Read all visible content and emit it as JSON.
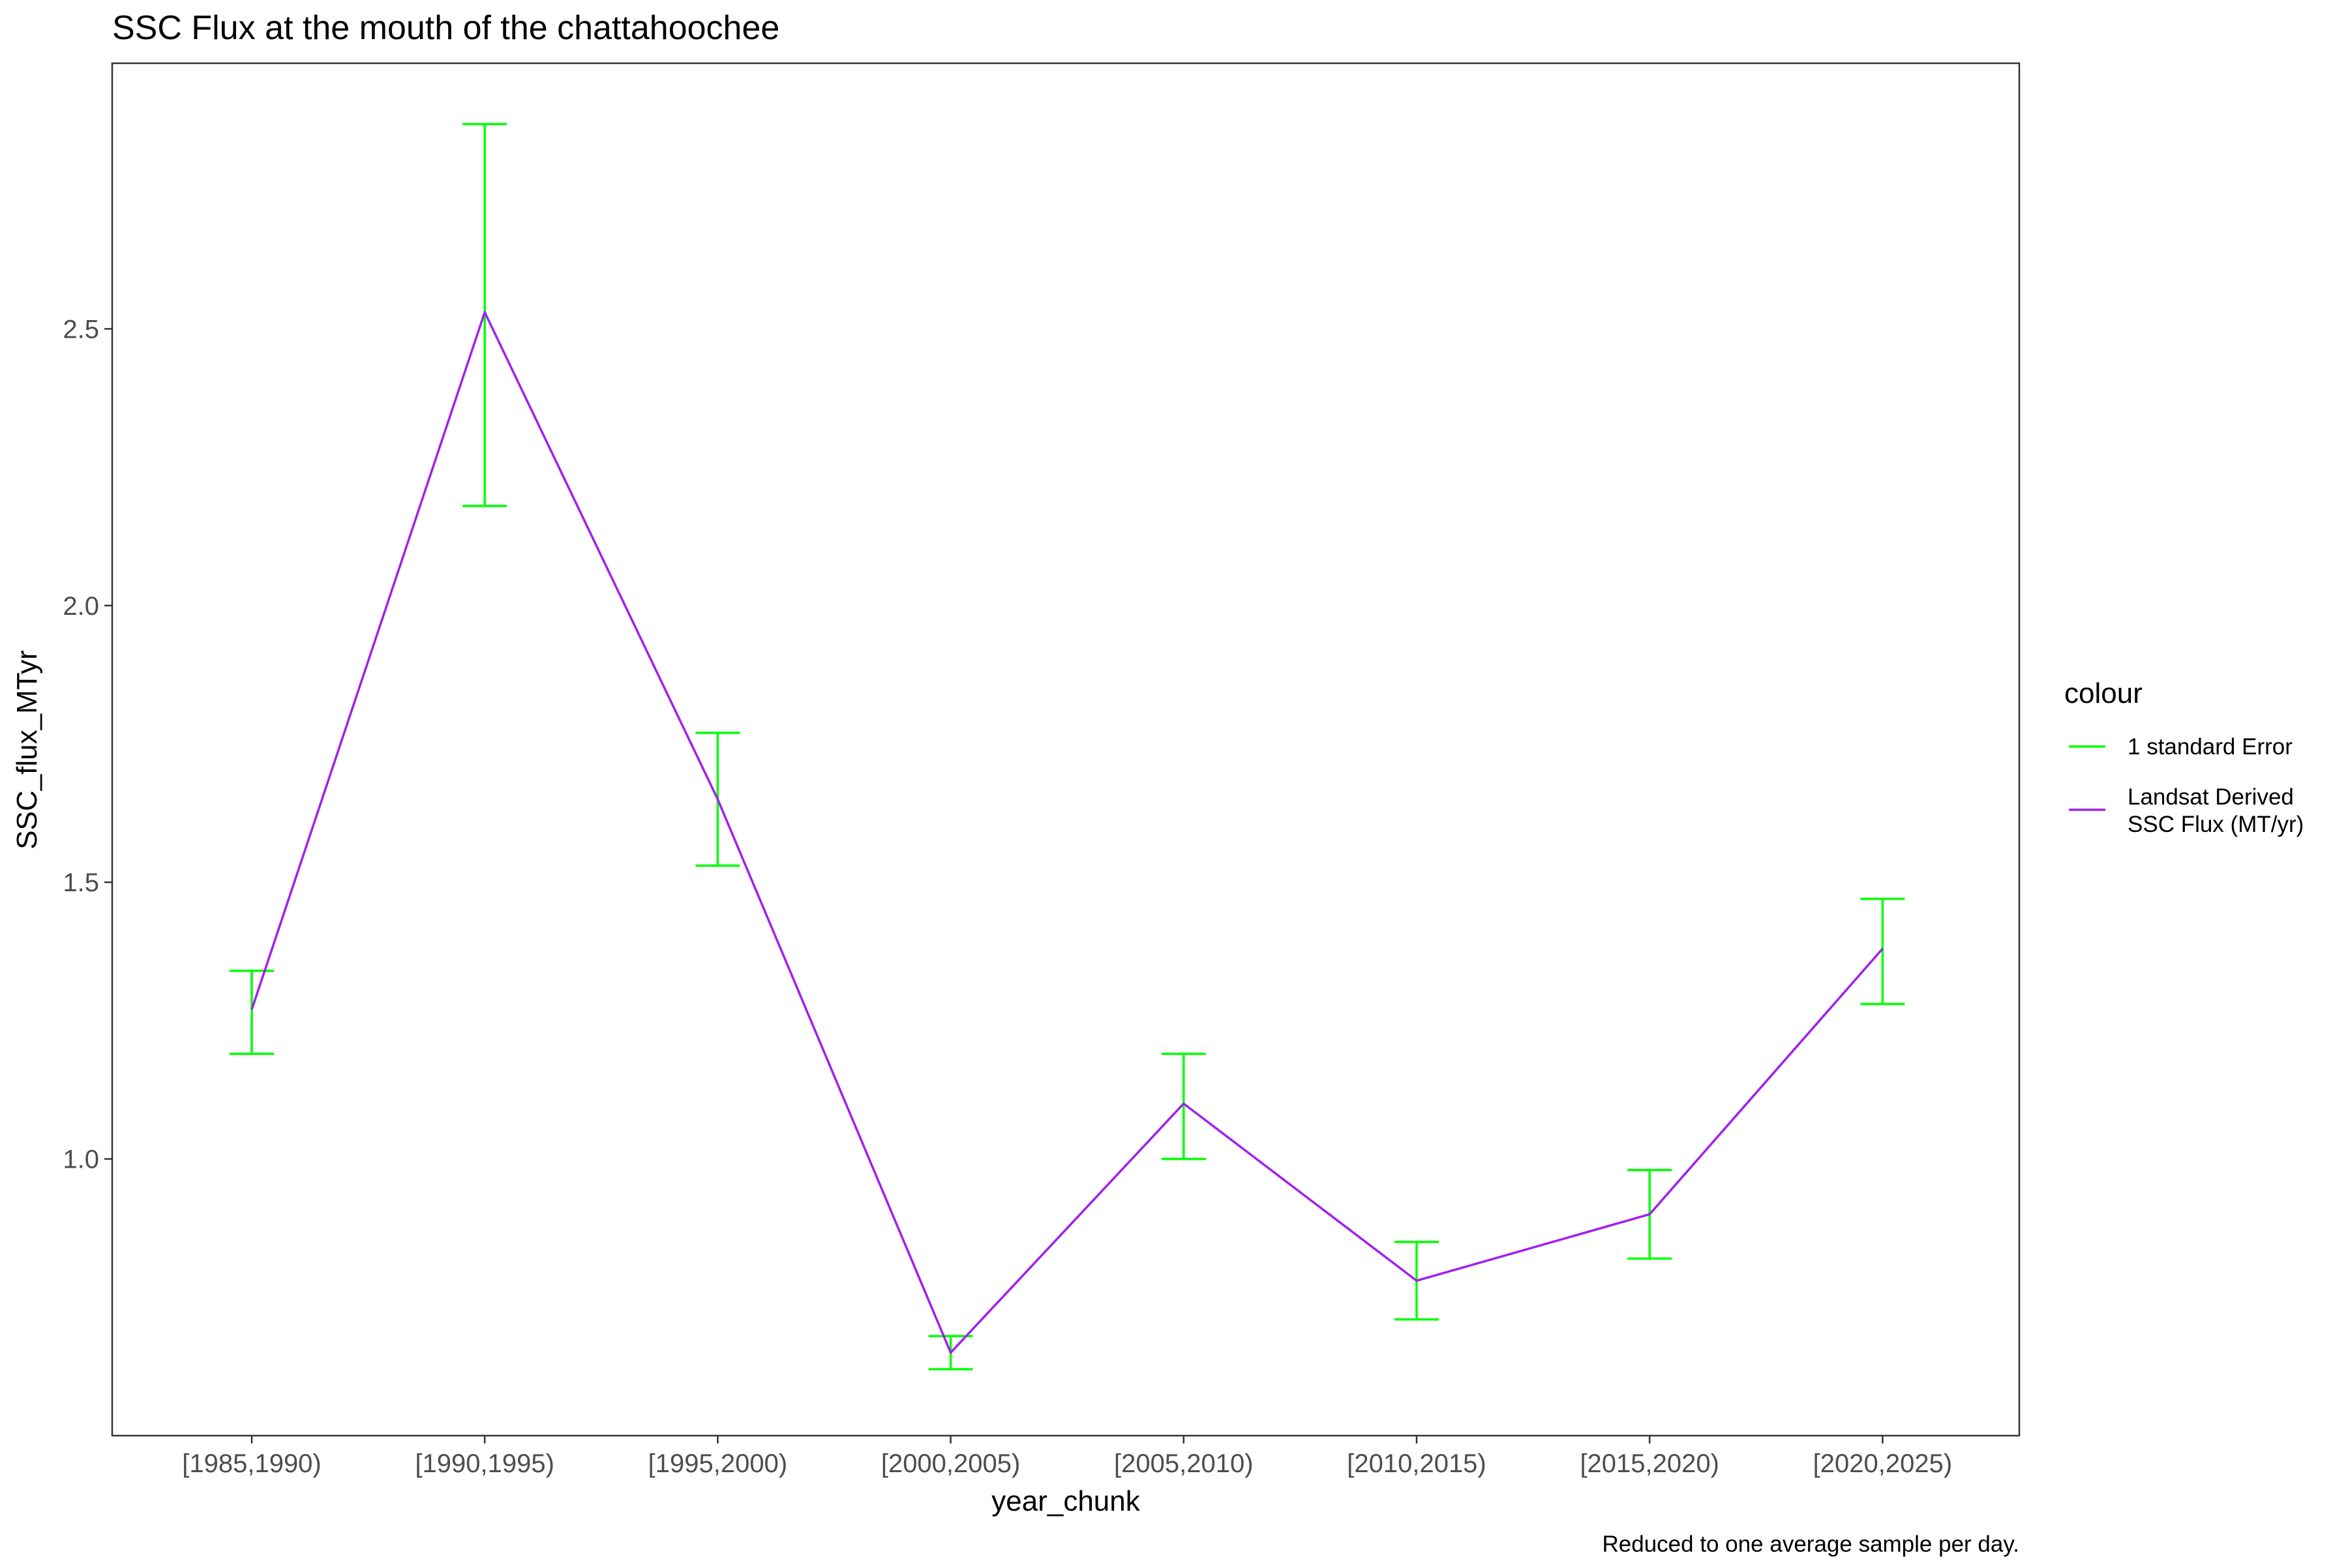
{
  "chart_data": {
    "type": "line",
    "title": "SSC Flux at the mouth of the chattahoochee",
    "xlabel": "year_chunk",
    "ylabel": "SSC_flux_MTyr",
    "caption": "Reduced to one average sample per day.",
    "categories": [
      "[1985,1990)",
      "[1990,1995)",
      "[1995,2000)",
      "[2000,2005)",
      "[2005,2010)",
      "[2010,2015)",
      "[2015,2020)",
      "[2020,2025)"
    ],
    "series": [
      {
        "name": "Landsat Derived SSC Flux (MT/yr)",
        "color": "#a020f0",
        "values": [
          1.27,
          2.53,
          1.65,
          0.65,
          1.1,
          0.78,
          0.9,
          1.38
        ]
      }
    ],
    "error_bars": {
      "name": "1 standard Error",
      "color": "#00ff00",
      "lower": [
        1.19,
        2.18,
        1.53,
        0.62,
        1.0,
        0.71,
        0.82,
        1.28
      ],
      "upper": [
        1.34,
        2.87,
        1.77,
        0.68,
        1.19,
        0.85,
        0.98,
        1.47
      ]
    },
    "y_ticks": [
      1.0,
      1.5,
      2.0,
      2.5
    ],
    "y_tick_labels": [
      "1.0",
      "1.5",
      "2.0",
      "2.5"
    ],
    "ylim": [
      0.5,
      2.98
    ],
    "grid": false,
    "legend": {
      "title": "colour",
      "placement": "right",
      "entries": [
        {
          "label_lines": [
            "1 standard Error"
          ],
          "color": "#00ff00"
        },
        {
          "label_lines": [
            "Landsat Derived",
            "SSC Flux (MT/yr)"
          ],
          "color": "#a020f0"
        }
      ]
    }
  }
}
